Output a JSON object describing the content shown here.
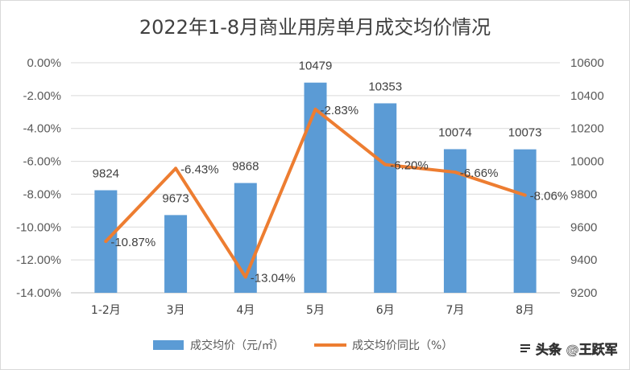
{
  "chart_data": {
    "type": "bar+line",
    "title": "2022年1-8月商业用房单月成交均价情况",
    "categories": [
      "1-2月",
      "3月",
      "4月",
      "5月",
      "6月",
      "7月",
      "8月"
    ],
    "series": [
      {
        "name": "成交均价（元/㎡）",
        "type": "bar",
        "axis": "right",
        "values": [
          9824,
          9673,
          9868,
          10479,
          10353,
          10074,
          10073
        ],
        "labels": [
          "9824",
          "9673",
          "9868",
          "10479",
          "10353",
          "10074",
          "10073"
        ]
      },
      {
        "name": "成交均价同比（%）",
        "type": "line",
        "axis": "left",
        "values": [
          -10.87,
          -6.43,
          -13.04,
          -2.83,
          -6.2,
          -6.66,
          -8.06
        ],
        "labels": [
          "-10.87%",
          "-6.43%",
          "-13.04%",
          "-2.83%",
          "-6.20%",
          "-6.66%",
          "-8.06%"
        ]
      }
    ],
    "y_left": {
      "min": -14,
      "max": 0,
      "step": 2,
      "ticks": [
        "0.00%",
        "-2.00%",
        "-4.00%",
        "-6.00%",
        "-8.00%",
        "-10.00%",
        "-12.00%",
        "-14.00%"
      ]
    },
    "y_right": {
      "min": 9200,
      "max": 10600,
      "step": 200,
      "ticks": [
        "10600",
        "10400",
        "10200",
        "10000",
        "9800",
        "9600",
        "9400",
        "9200"
      ]
    },
    "grid": true,
    "legend": "bottom"
  },
  "colors": {
    "bar": "#5B9BD5",
    "line": "#ED7D31",
    "grid": "#D9D9D9",
    "axis": "#BFBFBF",
    "border": "#D9D9D9"
  },
  "watermark": {
    "text": "头条 @王跃军",
    "icon": "toutiao-logo-icon"
  }
}
